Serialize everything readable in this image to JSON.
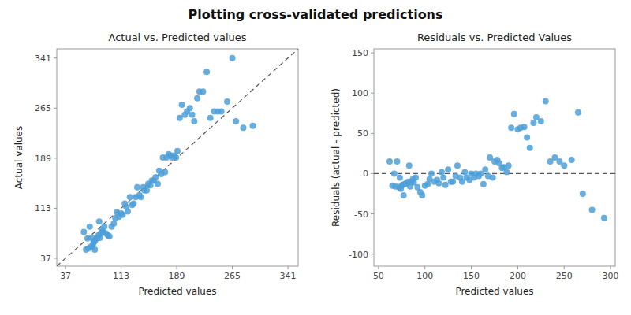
{
  "title": "Plotting cross-validated predictions",
  "chart_data": [
    {
      "type": "scatter",
      "title": "Actual vs. Predicted values",
      "x_label": "Predicted values",
      "y_label": "Actual values",
      "color": "#4c9fd8",
      "grid": false,
      "xlim": [
        25,
        355
      ],
      "ylim": [
        25,
        355
      ],
      "xticks": [
        37,
        113,
        189,
        265,
        341
      ],
      "yticks": [
        37,
        113,
        189,
        265,
        341
      ],
      "x": [
        62,
        65,
        67,
        68,
        70,
        72,
        73,
        74,
        75,
        76,
        77,
        78,
        80,
        82,
        83,
        84,
        85,
        87,
        88,
        90,
        92,
        95,
        97,
        100,
        103,
        105,
        107,
        110,
        113,
        115,
        118,
        120,
        122,
        125,
        128,
        130,
        133,
        135,
        138,
        140,
        143,
        145,
        148,
        150,
        153,
        155,
        158,
        160,
        163,
        165,
        168,
        170,
        173,
        175,
        178,
        180,
        183,
        185,
        188,
        190,
        193,
        196,
        200,
        203,
        207,
        210,
        213,
        217,
        220,
        225,
        230,
        235,
        240,
        245,
        250,
        258,
        265,
        270,
        280,
        293
      ],
      "values": [
        77,
        50,
        67,
        52,
        85,
        55,
        68,
        55,
        60,
        62,
        50,
        65,
        68,
        72,
        93,
        68,
        75,
        80,
        77,
        85,
        75,
        72,
        70,
        85,
        90,
        98,
        107,
        100,
        105,
        103,
        120,
        115,
        108,
        130,
        118,
        120,
        130,
        145,
        133,
        130,
        145,
        140,
        140,
        150,
        148,
        155,
        155,
        160,
        150,
        170,
        165,
        190,
        168,
        190,
        195,
        193,
        190,
        193,
        190,
        200,
        250,
        270,
        255,
        260,
        265,
        255,
        245,
        280,
        290,
        290,
        320,
        250,
        260,
        260,
        260,
        275,
        341,
        245,
        235,
        238
      ]
    },
    {
      "type": "scatter",
      "title": "Residuals vs. Predicted Values",
      "x_label": "Predicted values",
      "y_label": "Residuals (actual - predicted)",
      "color": "#4c9fd8",
      "grid": false,
      "xlim": [
        45,
        305
      ],
      "ylim": [
        -115,
        155
      ],
      "xticks": [
        50,
        100,
        150,
        200,
        250,
        300
      ],
      "yticks": [
        -100,
        -50,
        0,
        50,
        100,
        150
      ],
      "x": [
        62,
        65,
        67,
        68,
        70,
        72,
        73,
        74,
        75,
        76,
        77,
        78,
        80,
        82,
        83,
        84,
        85,
        87,
        88,
        90,
        92,
        95,
        97,
        100,
        103,
        105,
        107,
        110,
        113,
        115,
        118,
        120,
        122,
        125,
        128,
        130,
        133,
        135,
        138,
        140,
        143,
        145,
        148,
        150,
        153,
        155,
        158,
        160,
        163,
        165,
        168,
        170,
        173,
        175,
        178,
        180,
        183,
        185,
        188,
        190,
        193,
        196,
        200,
        203,
        207,
        210,
        213,
        217,
        220,
        225,
        230,
        235,
        240,
        245,
        250,
        258,
        265,
        270,
        280,
        293
      ],
      "values": [
        15,
        -15,
        0,
        -16,
        15,
        -17,
        -5,
        -19,
        -15,
        -14,
        -27,
        -13,
        -12,
        -10,
        10,
        -16,
        -10,
        -7,
        -11,
        -5,
        -17,
        -23,
        -27,
        -15,
        -13,
        -7,
        0,
        -10,
        -8,
        -12,
        2,
        -5,
        -14,
        5,
        -10,
        -10,
        -3,
        10,
        -5,
        -10,
        2,
        -5,
        -8,
        0,
        -5,
        0,
        -3,
        0,
        -13,
        5,
        -3,
        20,
        -5,
        15,
        17,
        13,
        7,
        8,
        2,
        10,
        57,
        74,
        55,
        57,
        58,
        45,
        32,
        63,
        70,
        65,
        90,
        15,
        20,
        15,
        10,
        17,
        76,
        -25,
        -45,
        -55
      ]
    }
  ]
}
